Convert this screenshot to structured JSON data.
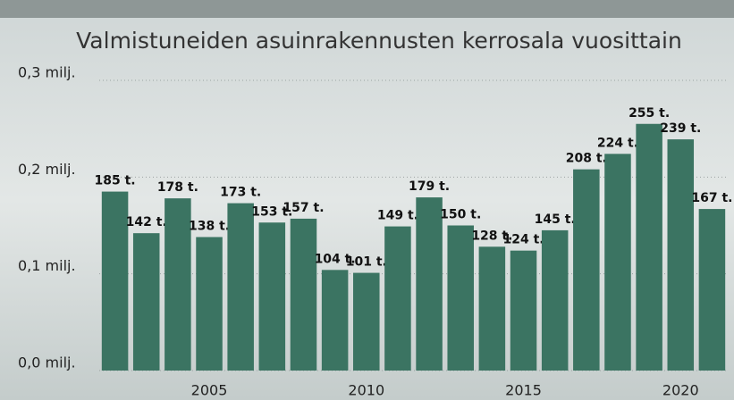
{
  "chart_data": {
    "type": "bar",
    "title": "Valmistuneiden asuinrakennusten kerrosala vuosittain",
    "categories": [
      null,
      null,
      null,
      "2005",
      null,
      null,
      null,
      null,
      "2010",
      null,
      null,
      null,
      null,
      "2015",
      null,
      null,
      null,
      null,
      "2020",
      null
    ],
    "values": [
      0.185,
      0.142,
      0.178,
      0.138,
      0.173,
      0.153,
      0.157,
      0.104,
      0.101,
      0.149,
      0.179,
      0.15,
      0.128,
      0.124,
      0.145,
      0.208,
      0.224,
      0.255,
      0.239,
      0.167
    ],
    "value_labels": [
      "185 t.",
      "142 t.",
      "178 t.",
      "138 t.",
      "173 t.",
      "153 t.",
      "157 t.",
      "104 t.",
      "101 t.",
      "149 t.",
      "179 t.",
      "150 t.",
      "128 t.",
      "124 t.",
      "145 t.",
      "208 t.",
      "224 t.",
      "255 t.",
      "239 t.",
      "167 t."
    ],
    "color": "#3b7462",
    "ylim": [
      0,
      0.3
    ],
    "yticks": [
      {
        "value": 0,
        "label": "0,0 milj."
      },
      {
        "value": 0.1,
        "label": "0,1 milj."
      },
      {
        "value": 0.2,
        "label": "0,2 milj."
      },
      {
        "value": 0.3,
        "label": "0,3 milj."
      }
    ],
    "grid": true
  }
}
